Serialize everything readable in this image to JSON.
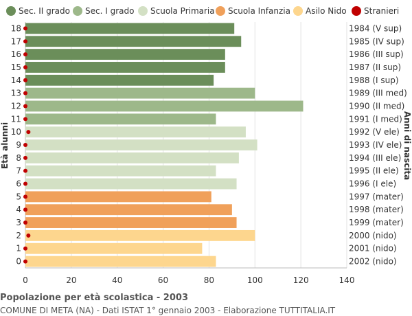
{
  "title": "Popolazione per età scolastica - 2003",
  "subtitle": "COMUNE DI META (NA) - Dati ISTAT 1° gennaio 2003 - Elaborazione TUTTITALIA.IT",
  "chart_data": {
    "type": "bar",
    "orientation": "horizontal",
    "ylabel_left": "Età alunni",
    "ylabel_right": "Anni di nascita",
    "xlim": [
      0,
      140
    ],
    "xticks": [
      0,
      20,
      40,
      60,
      80,
      100,
      120,
      140
    ],
    "grid": true,
    "legend_position": "top",
    "legend": [
      {
        "name": "Sec. II grado",
        "color": "#6b8e5a"
      },
      {
        "name": "Sec. I grado",
        "color": "#9db88a"
      },
      {
        "name": "Scuola Primaria",
        "color": "#d3e0c4"
      },
      {
        "name": "Scuola Infanzia",
        "color": "#f0a05a"
      },
      {
        "name": "Asilo Nido",
        "color": "#fdd68e"
      },
      {
        "name": "Stranieri",
        "color": "#c00000"
      }
    ],
    "rows": [
      {
        "age": "18",
        "birth": "1984 (V sup)",
        "value": 91,
        "stranieri": 0,
        "group": 0
      },
      {
        "age": "17",
        "birth": "1985 (IV sup)",
        "value": 94,
        "stranieri": 0,
        "group": 0
      },
      {
        "age": "16",
        "birth": "1986 (III sup)",
        "value": 87,
        "stranieri": 0,
        "group": 0
      },
      {
        "age": "15",
        "birth": "1987 (II sup)",
        "value": 87,
        "stranieri": 0,
        "group": 0
      },
      {
        "age": "14",
        "birth": "1988 (I sup)",
        "value": 82,
        "stranieri": 0,
        "group": 0
      },
      {
        "age": "13",
        "birth": "1989 (III med)",
        "value": 100,
        "stranieri": 0,
        "group": 1
      },
      {
        "age": "12",
        "birth": "1990 (II med)",
        "value": 121,
        "stranieri": 0,
        "group": 1
      },
      {
        "age": "11",
        "birth": "1991 (I med)",
        "value": 83,
        "stranieri": 0,
        "group": 1
      },
      {
        "age": "10",
        "birth": "1992 (V ele)",
        "value": 96,
        "stranieri": 1,
        "group": 2
      },
      {
        "age": "9",
        "birth": "1993 (IV ele)",
        "value": 101,
        "stranieri": 0,
        "group": 2
      },
      {
        "age": "8",
        "birth": "1994 (III ele)",
        "value": 93,
        "stranieri": 0,
        "group": 2
      },
      {
        "age": "7",
        "birth": "1995 (II ele)",
        "value": 83,
        "stranieri": 0,
        "group": 2
      },
      {
        "age": "6",
        "birth": "1996 (I ele)",
        "value": 92,
        "stranieri": 0,
        "group": 2
      },
      {
        "age": "5",
        "birth": "1997 (mater)",
        "value": 81,
        "stranieri": 0,
        "group": 3
      },
      {
        "age": "4",
        "birth": "1998 (mater)",
        "value": 90,
        "stranieri": 0,
        "group": 3
      },
      {
        "age": "3",
        "birth": "1999 (mater)",
        "value": 92,
        "stranieri": 0,
        "group": 3
      },
      {
        "age": "2",
        "birth": "2000 (nido)",
        "value": 100,
        "stranieri": 1,
        "group": 4
      },
      {
        "age": "1",
        "birth": "2001 (nido)",
        "value": 77,
        "stranieri": 0,
        "group": 4
      },
      {
        "age": "0",
        "birth": "2002 (nido)",
        "value": 83,
        "stranieri": 0,
        "group": 4
      }
    ]
  }
}
